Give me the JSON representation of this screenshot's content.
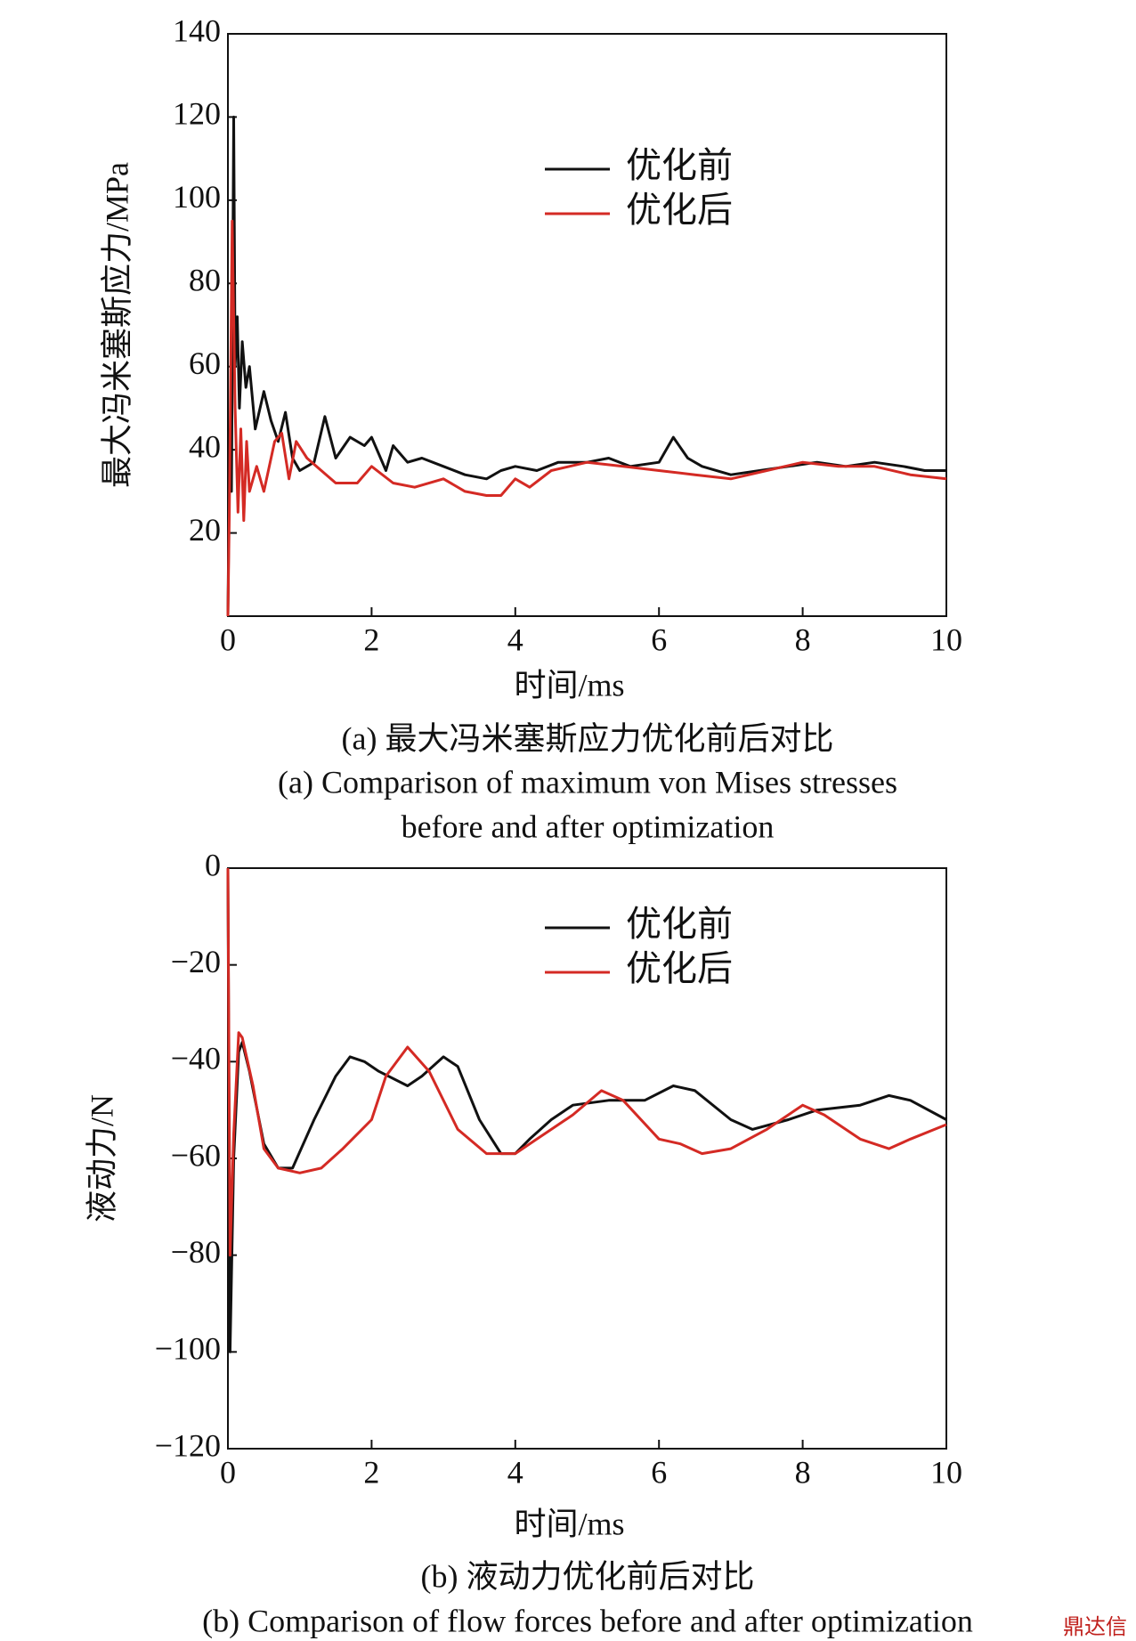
{
  "chart_data": [
    {
      "type": "line",
      "xlabel": "时间/ms",
      "ylabel": "最大冯米塞斯应力/MPa",
      "caption": [
        "(a) 最大冯米塞斯应力优化前后对比",
        "(a) Comparison of maximum von Mises stresses",
        "before and after optimization"
      ],
      "xlim": [
        0,
        10
      ],
      "xticks": [
        0,
        2,
        4,
        6,
        8,
        10
      ],
      "ylim": [
        0,
        140
      ],
      "yticks": [
        20,
        40,
        60,
        80,
        100,
        120,
        140
      ],
      "series": [
        {
          "name": "优化前",
          "color": "#111111",
          "x": [
            0,
            0.02,
            0.05,
            0.08,
            0.1,
            0.13,
            0.16,
            0.2,
            0.25,
            0.3,
            0.38,
            0.5,
            0.6,
            0.7,
            0.8,
            0.9,
            1.0,
            1.2,
            1.35,
            1.5,
            1.7,
            1.9,
            2.0,
            2.2,
            2.3,
            2.5,
            2.7,
            3.0,
            3.3,
            3.6,
            3.8,
            4.0,
            4.3,
            4.6,
            5.0,
            5.3,
            5.6,
            6.0,
            6.2,
            6.4,
            6.6,
            7.0,
            7.4,
            7.8,
            8.2,
            8.6,
            9.0,
            9.4,
            9.7,
            10
          ],
          "values": [
            0,
            36,
            30,
            120,
            60,
            72,
            50,
            66,
            55,
            60,
            45,
            54,
            47,
            42,
            49,
            38,
            35,
            37,
            48,
            38,
            43,
            41,
            43,
            35,
            41,
            37,
            38,
            36,
            34,
            33,
            35,
            36,
            35,
            37,
            37,
            38,
            36,
            37,
            43,
            38,
            36,
            34,
            35,
            36,
            37,
            36,
            37,
            36,
            35,
            35
          ]
        },
        {
          "name": "优化后",
          "color": "#d42a24",
          "x": [
            0,
            0.02,
            0.06,
            0.1,
            0.14,
            0.18,
            0.22,
            0.26,
            0.3,
            0.4,
            0.5,
            0.65,
            0.75,
            0.85,
            0.95,
            1.1,
            1.3,
            1.5,
            1.8,
            2.0,
            2.3,
            2.6,
            3.0,
            3.3,
            3.6,
            3.8,
            4.0,
            4.2,
            4.5,
            5.0,
            5.5,
            6.0,
            6.5,
            7.0,
            7.5,
            8.0,
            8.5,
            9.0,
            9.5,
            10
          ],
          "values": [
            0,
            25,
            95,
            50,
            25,
            45,
            23,
            42,
            30,
            36,
            30,
            42,
            44,
            33,
            42,
            38,
            35,
            32,
            32,
            36,
            32,
            31,
            33,
            30,
            29,
            29,
            33,
            31,
            35,
            37,
            36,
            35,
            34,
            33,
            35,
            37,
            36,
            36,
            34,
            33
          ]
        }
      ]
    },
    {
      "type": "line",
      "xlabel": "时间/ms",
      "ylabel": "液动力/N",
      "caption": [
        "(b) 液动力优化前后对比",
        "(b) Comparison of flow forces before and after optimization"
      ],
      "xlim": [
        0,
        10
      ],
      "xticks": [
        0,
        2,
        4,
        6,
        8,
        10
      ],
      "ylim": [
        -120,
        0
      ],
      "yticks": [
        0,
        {
          "value": -20,
          "label": "−20"
        },
        {
          "value": -40,
          "label": "−40"
        },
        {
          "value": -60,
          "label": "−60"
        },
        {
          "value": -80,
          "label": "−80"
        },
        {
          "value": -100,
          "label": "−100"
        },
        {
          "value": -120,
          "label": "−120"
        }
      ],
      "series": [
        {
          "name": "优化前",
          "color": "#111111",
          "x": [
            0,
            0.03,
            0.08,
            0.15,
            0.2,
            0.3,
            0.5,
            0.7,
            0.9,
            1.2,
            1.5,
            1.7,
            1.9,
            2.1,
            2.5,
            2.7,
            3.0,
            3.2,
            3.5,
            3.8,
            4.0,
            4.2,
            4.5,
            4.8,
            5.3,
            5.8,
            6.2,
            6.5,
            7.0,
            7.3,
            7.8,
            8.2,
            8.8,
            9.2,
            9.5,
            10
          ],
          "values": [
            0,
            -100,
            -60,
            -38,
            -36,
            -42,
            -57,
            -62,
            -62,
            -52,
            -43,
            -39,
            -40,
            -42,
            -45,
            -43,
            -39,
            -41,
            -52,
            -59,
            -59,
            -56,
            -52,
            -49,
            -48,
            -48,
            -45,
            -46,
            -52,
            -54,
            -52,
            -50,
            -49,
            -47,
            -48,
            -52
          ]
        },
        {
          "name": "优化后",
          "color": "#d42a24",
          "x": [
            0,
            0.03,
            0.08,
            0.15,
            0.2,
            0.35,
            0.5,
            0.7,
            1.0,
            1.3,
            1.6,
            2.0,
            2.2,
            2.5,
            2.8,
            3.2,
            3.6,
            4.0,
            4.3,
            4.8,
            5.2,
            5.5,
            6.0,
            6.3,
            6.6,
            7.0,
            7.5,
            8.0,
            8.3,
            8.8,
            9.2,
            9.5,
            10
          ],
          "values": [
            0,
            -80,
            -55,
            -34,
            -35,
            -45,
            -58,
            -62,
            -63,
            -62,
            -58,
            -52,
            -43,
            -37,
            -42,
            -54,
            -59,
            -59,
            -56,
            -51,
            -46,
            -48,
            -56,
            -57,
            -59,
            -58,
            -54,
            -49,
            -51,
            -56,
            -58,
            -56,
            -53
          ]
        }
      ]
    }
  ],
  "watermark": "鼎达信"
}
